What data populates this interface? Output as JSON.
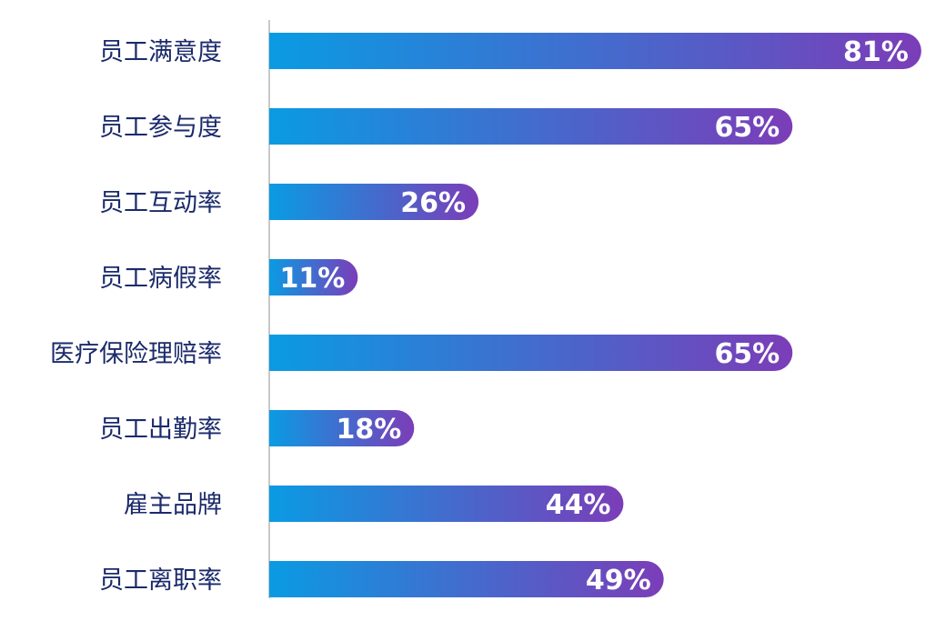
{
  "chart_data": {
    "type": "bar",
    "orientation": "horizontal",
    "title": "",
    "xlabel": "",
    "ylabel": "",
    "xlim": [
      0,
      100
    ],
    "categories": [
      "员工满意度",
      "员工参与度",
      "员工互动率",
      "员工病假率",
      "医疗保险理赔率",
      "员工出勤率",
      "雇主品牌",
      "员工离职率"
    ],
    "values": [
      81,
      65,
      26,
      11,
      65,
      18,
      44,
      49
    ],
    "value_labels": [
      "81%",
      "65%",
      "26%",
      "11%",
      "65%",
      "18%",
      "44%",
      "49%"
    ],
    "grid": false,
    "legend": "none",
    "colors": {
      "bar_gradient_start": "#0a9be3",
      "bar_gradient_end": "#7b3db8",
      "label": "#1b2a6b",
      "axis": "#c8c8c8",
      "value_text": "#ffffff"
    }
  }
}
